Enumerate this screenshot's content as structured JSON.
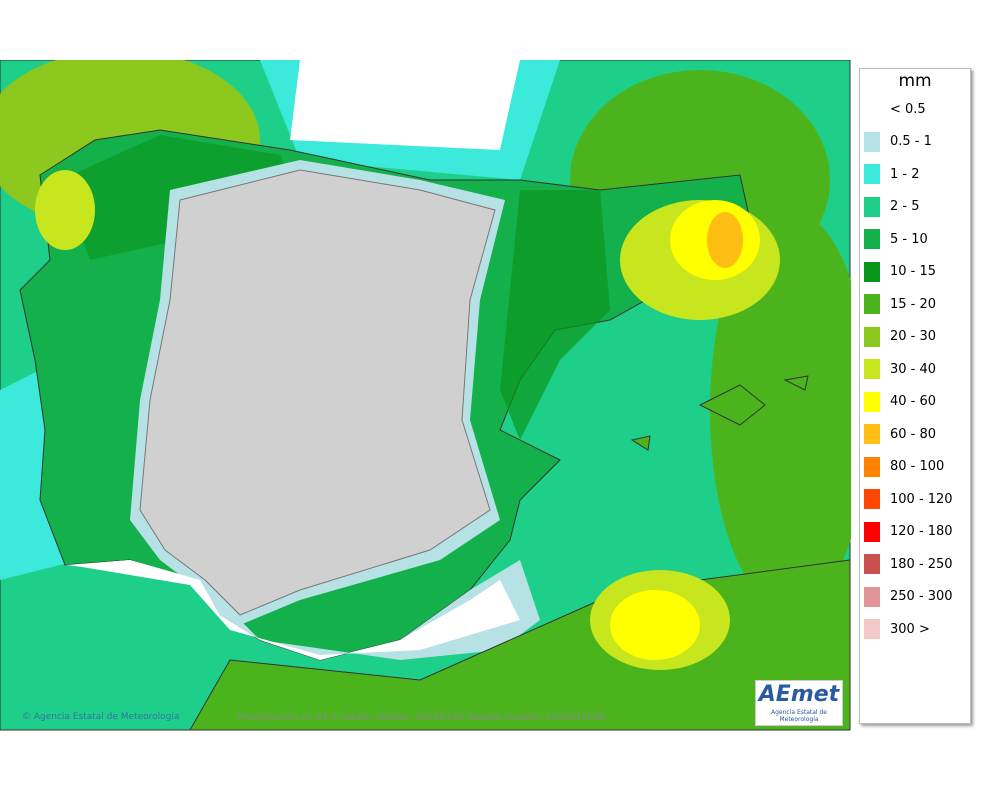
{
  "map": {
    "legend": {
      "title": "mm",
      "items": [
        {
          "label": "< 0.5",
          "color": "#ffffff"
        },
        {
          "label": "0.5 - 1",
          "color": "#b6e2e6"
        },
        {
          "label": "1 - 2",
          "color": "#3ceadb"
        },
        {
          "label": "2 - 5",
          "color": "#1ecf8a"
        },
        {
          "label": "5 - 10",
          "color": "#14b04c"
        },
        {
          "label": "10 - 15",
          "color": "#0a961c"
        },
        {
          "label": "15 - 20",
          "color": "#4bb41c"
        },
        {
          "label": "20 - 30",
          "color": "#8cc81e"
        },
        {
          "label": "30 - 40",
          "color": "#c8e61e"
        },
        {
          "label": "40 - 60",
          "color": "#ffff00"
        },
        {
          "label": "60 - 80",
          "color": "#ffbe14"
        },
        {
          "label": "80 - 100",
          "color": "#ff8200"
        },
        {
          "label": "100 - 120",
          "color": "#ff4600"
        },
        {
          "label": "120 - 180",
          "color": "#ff0000"
        },
        {
          "label": "180 - 250",
          "color": "#c85050"
        },
        {
          "label": "250 - 300",
          "color": "#e09696"
        },
        {
          "label": "300 >",
          "color": "#f2c8c8"
        }
      ]
    },
    "credit": "© Agencia Estatal de Meteorología",
    "caption": "Precipitación en 24 h media. Validez: 20260120 Pasada modelo: 2026012000",
    "logo": {
      "name": "AEmet",
      "subtitle": "Agencia Estatal de Meteorología"
    }
  }
}
